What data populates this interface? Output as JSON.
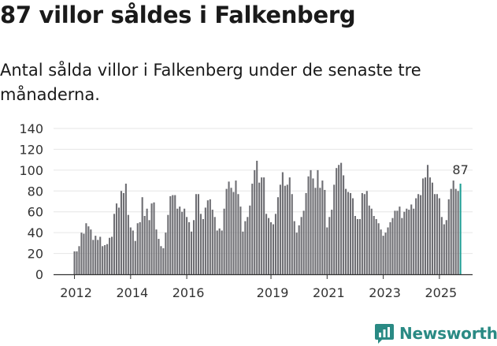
{
  "header": {
    "title": "87 villor såldes i Falkenberg",
    "subtitle": "Antal sålda villor i Falkenberg under de senaste tre månaderna."
  },
  "brand": {
    "name": "Newsworthy",
    "icon": "chart-bubble-icon",
    "color": "#2a8a84"
  },
  "colors": {
    "bar": "#6e6e73",
    "highlight": "#1f9e94",
    "grid": "#e6e6e6"
  },
  "chart_data": {
    "type": "bar",
    "title": "87 villor såldes i Falkenberg",
    "subtitle": "Antal sålda villor i Falkenberg under de senaste tre månaderna.",
    "xlabel": "",
    "ylabel": "",
    "ylim": [
      0,
      140
    ],
    "y_ticks": [
      "0",
      "20",
      "40",
      "60",
      "80",
      "100",
      "120",
      "140"
    ],
    "x_ticks": [
      "2012",
      "2014",
      "2016",
      "2019",
      "2021",
      "2023",
      "2025"
    ],
    "annotation": "87",
    "first_month": "2012-01",
    "values": [
      22,
      22,
      27,
      40,
      39,
      49,
      46,
      43,
      33,
      37,
      33,
      36,
      27,
      28,
      29,
      35,
      36,
      58,
      68,
      64,
      80,
      78,
      87,
      57,
      45,
      42,
      32,
      49,
      50,
      74,
      56,
      63,
      52,
      68,
      69,
      43,
      34,
      27,
      25,
      40,
      57,
      75,
      76,
      76,
      63,
      65,
      60,
      63,
      55,
      50,
      41,
      52,
      77,
      77,
      58,
      53,
      64,
      71,
      72,
      62,
      55,
      42,
      44,
      42,
      63,
      82,
      89,
      83,
      79,
      90,
      77,
      65,
      41,
      51,
      55,
      66,
      87,
      100,
      109,
      88,
      93,
      93,
      58,
      54,
      50,
      48,
      58,
      74,
      86,
      98,
      85,
      86,
      93,
      77,
      51,
      40,
      47,
      55,
      61,
      78,
      94,
      100,
      92,
      83,
      100,
      83,
      90,
      81,
      45,
      55,
      62,
      86,
      102,
      105,
      107,
      95,
      82,
      79,
      78,
      73,
      56,
      53,
      53,
      78,
      77,
      80,
      66,
      63,
      56,
      53,
      49,
      43,
      37,
      40,
      45,
      50,
      54,
      61,
      61,
      65,
      54,
      60,
      63,
      62,
      67,
      63,
      73,
      77,
      76,
      92,
      93,
      105,
      93,
      88,
      77,
      77,
      73,
      55,
      48,
      52,
      72,
      82,
      90,
      82,
      80,
      87
    ]
  }
}
